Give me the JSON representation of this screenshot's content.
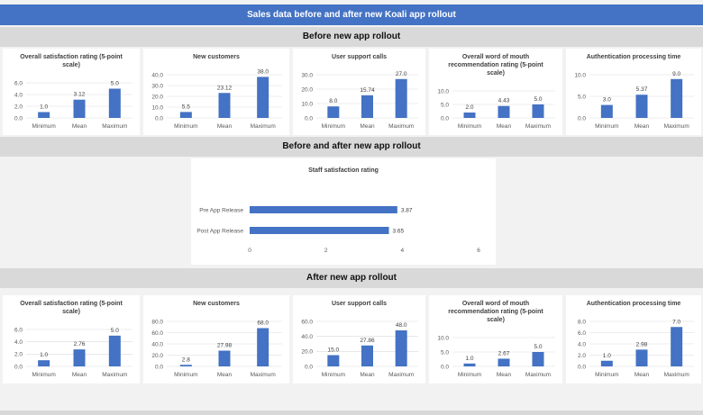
{
  "page": {
    "title": "Sales data before and after new Koali app rollout",
    "sections": {
      "before": "Before new app rollout",
      "both": "Before and after new app rollout",
      "after": "After new app rollout"
    }
  },
  "colors": {
    "header": "#4472c4",
    "bar": "#4472c4",
    "section": "#d9d9d9",
    "grid": "#d9d9d9"
  },
  "chart_data": [
    {
      "id": "before-satisfaction",
      "type": "bar",
      "title": [
        "Overall satisfaction rating (5-point",
        "scale)"
      ],
      "categories": [
        "Minimum",
        "Mean",
        "Maximum"
      ],
      "values": [
        1.0,
        3.12,
        5.0
      ],
      "labels": [
        "1.0",
        "3.12",
        "5.0"
      ],
      "ylim": [
        0,
        6
      ],
      "yticks": [
        0,
        2,
        4,
        6
      ],
      "ytick_labels": [
        "0.0",
        "2.0",
        "4.0",
        "6.0"
      ]
    },
    {
      "id": "before-customers",
      "type": "bar",
      "title": [
        "New customers"
      ],
      "categories": [
        "Minimum",
        "Mean",
        "Maximum"
      ],
      "values": [
        5.5,
        23.12,
        38.0
      ],
      "labels": [
        "5.5",
        "23.12",
        "38.0"
      ],
      "ylim": [
        0,
        40
      ],
      "yticks": [
        0,
        10,
        20,
        30,
        40
      ],
      "ytick_labels": [
        "0.0",
        "10.0",
        "20.0",
        "30.0",
        "40.0"
      ]
    },
    {
      "id": "before-support",
      "type": "bar",
      "title": [
        "User support calls"
      ],
      "categories": [
        "Minimum",
        "Mean",
        "Maximum"
      ],
      "values": [
        8.0,
        15.74,
        27.0
      ],
      "labels": [
        "8.0",
        "15.74",
        "27.0"
      ],
      "ylim": [
        0,
        30
      ],
      "yticks": [
        0,
        10,
        20,
        30
      ],
      "ytick_labels": [
        "0.0",
        "10.0",
        "20.0",
        "30.0"
      ]
    },
    {
      "id": "before-wom",
      "type": "bar",
      "title": [
        "Overall word of mouth",
        "recommendation rating (5-point",
        "scale)"
      ],
      "categories": [
        "Minimum",
        "Mean",
        "Maximum"
      ],
      "values": [
        2.0,
        4.43,
        5.0
      ],
      "labels": [
        "2.0",
        "4.43",
        "5.0"
      ],
      "ylim": [
        0,
        10
      ],
      "yticks": [
        0,
        5,
        10
      ],
      "ytick_labels": [
        "0.0",
        "5.0",
        "10.0"
      ]
    },
    {
      "id": "before-auth",
      "type": "bar",
      "title": [
        "Authentication processing time"
      ],
      "categories": [
        "Minimum",
        "Mean",
        "Maximum"
      ],
      "values": [
        3.0,
        5.37,
        9.0
      ],
      "labels": [
        "3.0",
        "5.37",
        "9.0"
      ],
      "ylim": [
        0,
        10
      ],
      "yticks": [
        0,
        5,
        10
      ],
      "ytick_labels": [
        "0.0",
        "5.0",
        "10.0"
      ]
    },
    {
      "id": "staff-satisfaction",
      "type": "hbar",
      "title": [
        "Staff satisfaction rating"
      ],
      "categories": [
        "Pre App Release",
        "Post App Release"
      ],
      "values": [
        3.87,
        3.65
      ],
      "labels": [
        "3.87",
        "3.65"
      ],
      "xlim": [
        0,
        6
      ],
      "xticks": [
        0,
        2,
        4,
        6
      ],
      "xtick_labels": [
        "0",
        "2",
        "4",
        "6"
      ]
    },
    {
      "id": "after-satisfaction",
      "type": "bar",
      "title": [
        "Overall satisfaction rating (5-point",
        "scale)"
      ],
      "categories": [
        "Minimum",
        "Mean",
        "Maximum"
      ],
      "values": [
        1.0,
        2.76,
        5.0
      ],
      "labels": [
        "1.0",
        "2.76",
        "5.0"
      ],
      "ylim": [
        0,
        6
      ],
      "yticks": [
        0,
        2,
        4,
        6
      ],
      "ytick_labels": [
        "0.0",
        "2.0",
        "4.0",
        "6.0"
      ]
    },
    {
      "id": "after-customers",
      "type": "bar",
      "title": [
        "New customers"
      ],
      "categories": [
        "Minimum",
        "Mean",
        "Maximum"
      ],
      "values": [
        2.8,
        27.98,
        68.0
      ],
      "labels": [
        "2.8",
        "27.98",
        "68.0"
      ],
      "ylim": [
        0,
        80
      ],
      "yticks": [
        0,
        20,
        40,
        60,
        80
      ],
      "ytick_labels": [
        "0.0",
        "20.0",
        "40.0",
        "60.0",
        "80.0"
      ]
    },
    {
      "id": "after-support",
      "type": "bar",
      "title": [
        "User support calls"
      ],
      "categories": [
        "Minimum",
        "Mean",
        "Maximum"
      ],
      "values": [
        15.0,
        27.86,
        48.0
      ],
      "labels": [
        "15.0",
        "27.86",
        "48.0"
      ],
      "ylim": [
        0,
        60
      ],
      "yticks": [
        0,
        20,
        40,
        60
      ],
      "ytick_labels": [
        "0.0",
        "20.0",
        "40.0",
        "60.0"
      ]
    },
    {
      "id": "after-wom",
      "type": "bar",
      "title": [
        "Overall word of mouth",
        "recommendation rating (5-point",
        "scale)"
      ],
      "categories": [
        "Minimum",
        "Mean",
        "Maximum"
      ],
      "values": [
        1.0,
        2.67,
        5.0
      ],
      "labels": [
        "1.0",
        "2.67",
        "5.0"
      ],
      "ylim": [
        0,
        10
      ],
      "yticks": [
        0,
        5,
        10
      ],
      "ytick_labels": [
        "0.0",
        "5.0",
        "10.0"
      ]
    },
    {
      "id": "after-auth",
      "type": "bar",
      "title": [
        "Authentication processing time"
      ],
      "categories": [
        "Minimum",
        "Mean",
        "Maximum"
      ],
      "values": [
        1.0,
        2.98,
        7.0
      ],
      "labels": [
        "1.0",
        "2.98",
        "7.0"
      ],
      "ylim": [
        0,
        8
      ],
      "yticks": [
        0,
        2,
        4,
        6,
        8
      ],
      "ytick_labels": [
        "0.0",
        "2.0",
        "4.0",
        "6.0",
        "8.0"
      ]
    }
  ]
}
